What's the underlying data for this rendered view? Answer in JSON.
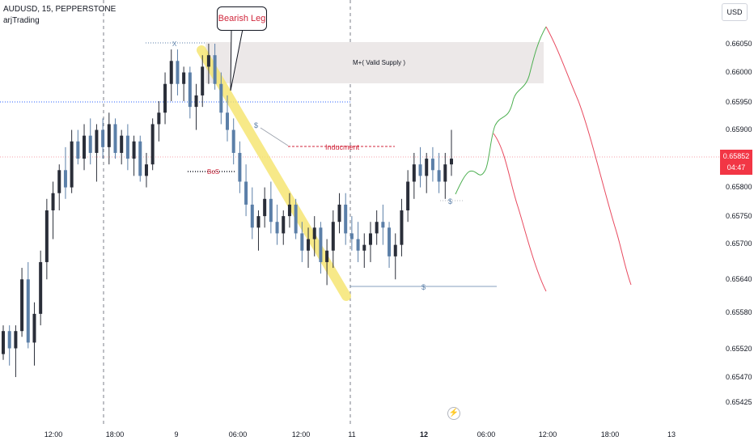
{
  "header": {
    "symbol_line": "AUDUSD, 15, PEPPERSTONE",
    "author": "arjTrading"
  },
  "currency_button": "USD",
  "current_price": {
    "value": "0.65852",
    "countdown": "04:47",
    "color": "#f23645"
  },
  "chart_data": {
    "type": "candlestick",
    "price_axis": {
      "ticks": [
        "0.66050",
        "0.66000",
        "0.65950",
        "0.65900",
        "0.65800",
        "0.65750",
        "0.65700",
        "0.65640",
        "0.65580",
        "0.65520",
        "0.65470",
        "0.65425"
      ]
    },
    "time_axis": {
      "ticks": [
        "12:00",
        "18:00",
        "9",
        "06:00",
        "12:00",
        "11",
        "12",
        "06:00",
        "12:00",
        "18:00",
        "13"
      ],
      "bold": [
        "12"
      ]
    },
    "annotations": {
      "bearish_leg": "Bearish Leg",
      "supply_zone": "M+( Valid Supply )",
      "inducement": "Inducment",
      "bos": "BoS",
      "x_marker": "X",
      "dollar_marker": "$"
    },
    "colors": {
      "up": "#2a2e39",
      "down": "#5b7fa8",
      "supply_zone": "#ece8e8",
      "highlight": "#f5e46a",
      "bearish_projection": "#e84a5f",
      "bullish_projection": "#4caf50",
      "label_red": "#d0263b",
      "grid_dash": "#7b7f8a"
    },
    "candles": [
      [
        0.6551,
        0.6556,
        0.655,
        0.6555
      ],
      [
        0.6555,
        0.6556,
        0.6549,
        0.6552
      ],
      [
        0.6552,
        0.6556,
        0.6547,
        0.6555
      ],
      [
        0.6555,
        0.6566,
        0.6554,
        0.6564
      ],
      [
        0.6564,
        0.6567,
        0.6552,
        0.6553
      ],
      [
        0.6553,
        0.656,
        0.6549,
        0.6558
      ],
      [
        0.6558,
        0.6569,
        0.6556,
        0.6567
      ],
      [
        0.6567,
        0.6578,
        0.6564,
        0.6576
      ],
      [
        0.6576,
        0.6581,
        0.6571,
        0.6579
      ],
      [
        0.6579,
        0.6584,
        0.6576,
        0.6583
      ],
      [
        0.6583,
        0.6587,
        0.6578,
        0.658
      ],
      [
        0.658,
        0.659,
        0.6579,
        0.6588
      ],
      [
        0.6588,
        0.659,
        0.6584,
        0.6585
      ],
      [
        0.6585,
        0.6591,
        0.6583,
        0.6589
      ],
      [
        0.6589,
        0.6592,
        0.6584,
        0.6586
      ],
      [
        0.6586,
        0.6591,
        0.6581,
        0.659
      ],
      [
        0.659,
        0.6592,
        0.6585,
        0.6587
      ],
      [
        0.6587,
        0.6593,
        0.6584,
        0.6591
      ],
      [
        0.6591,
        0.6592,
        0.6585,
        0.6586
      ],
      [
        0.6586,
        0.659,
        0.6584,
        0.6589
      ],
      [
        0.6589,
        0.6591,
        0.6583,
        0.6585
      ],
      [
        0.6585,
        0.6589,
        0.6582,
        0.6588
      ],
      [
        0.6588,
        0.6589,
        0.6581,
        0.6582
      ],
      [
        0.6582,
        0.6586,
        0.658,
        0.6584
      ],
      [
        0.6584,
        0.6592,
        0.6583,
        0.6591
      ],
      [
        0.6591,
        0.6595,
        0.6588,
        0.6593
      ],
      [
        0.6593,
        0.66,
        0.6591,
        0.6598
      ],
      [
        0.6598,
        0.6604,
        0.6595,
        0.6602
      ],
      [
        0.6602,
        0.6604,
        0.6596,
        0.6598
      ],
      [
        0.6598,
        0.6601,
        0.6595,
        0.66
      ],
      [
        0.66,
        0.6601,
        0.6592,
        0.6594
      ],
      [
        0.6594,
        0.6598,
        0.659,
        0.6596
      ],
      [
        0.6596,
        0.6603,
        0.6594,
        0.6601
      ],
      [
        0.6601,
        0.6605,
        0.6598,
        0.6603
      ],
      [
        0.6603,
        0.6605,
        0.6597,
        0.6598
      ],
      [
        0.6598,
        0.66,
        0.6591,
        0.6593
      ],
      [
        0.6593,
        0.6596,
        0.6588,
        0.659
      ],
      [
        0.659,
        0.6592,
        0.6584,
        0.6586
      ],
      [
        0.6586,
        0.6588,
        0.6579,
        0.6581
      ],
      [
        0.6581,
        0.6584,
        0.6575,
        0.6577
      ],
      [
        0.6577,
        0.658,
        0.6571,
        0.6573
      ],
      [
        0.6573,
        0.6576,
        0.6569,
        0.6575
      ],
      [
        0.6575,
        0.658,
        0.6573,
        0.6578
      ],
      [
        0.6578,
        0.6581,
        0.6572,
        0.6574
      ],
      [
        0.6574,
        0.6577,
        0.657,
        0.6572
      ],
      [
        0.6572,
        0.6576,
        0.657,
        0.6575
      ],
      [
        0.6575,
        0.6579,
        0.6573,
        0.6577
      ],
      [
        0.6577,
        0.6578,
        0.6571,
        0.6572
      ],
      [
        0.6572,
        0.6574,
        0.6567,
        0.6569
      ],
      [
        0.6569,
        0.6573,
        0.6566,
        0.6571
      ],
      [
        0.6571,
        0.6575,
        0.6568,
        0.6573
      ],
      [
        0.6573,
        0.6574,
        0.6565,
        0.6567
      ],
      [
        0.6567,
        0.6571,
        0.6563,
        0.6569
      ],
      [
        0.6569,
        0.6576,
        0.6566,
        0.6574
      ],
      [
        0.6574,
        0.6579,
        0.6572,
        0.6577
      ],
      [
        0.6577,
        0.6579,
        0.657,
        0.6572
      ],
      [
        0.6572,
        0.6575,
        0.6569,
        0.6571
      ],
      [
        0.6571,
        0.6574,
        0.6567,
        0.6569
      ],
      [
        0.6569,
        0.6572,
        0.6566,
        0.657
      ],
      [
        0.657,
        0.6574,
        0.6567,
        0.6572
      ],
      [
        0.6572,
        0.6576,
        0.657,
        0.6574
      ],
      [
        0.6574,
        0.6577,
        0.657,
        0.6573
      ],
      [
        0.6573,
        0.6574,
        0.6566,
        0.6568
      ],
      [
        0.6568,
        0.6572,
        0.6564,
        0.657
      ],
      [
        0.657,
        0.6578,
        0.6568,
        0.6576
      ],
      [
        0.6576,
        0.6583,
        0.6574,
        0.6581
      ],
      [
        0.6581,
        0.6586,
        0.6578,
        0.6584
      ],
      [
        0.6584,
        0.6587,
        0.658,
        0.6582
      ],
      [
        0.6582,
        0.6586,
        0.6579,
        0.6585
      ],
      [
        0.6585,
        0.6587,
        0.6581,
        0.6583
      ],
      [
        0.6583,
        0.6586,
        0.6579,
        0.6581
      ],
      [
        0.6581,
        0.6586,
        0.6578,
        0.6584
      ],
      [
        0.6584,
        0.659,
        0.6582,
        0.6585
      ]
    ],
    "x_labels": [
      "12:00",
      "18:00",
      "9",
      "06:00",
      "12:00",
      "11",
      "12",
      "06:00",
      "12:00",
      "18:00",
      "13"
    ]
  }
}
